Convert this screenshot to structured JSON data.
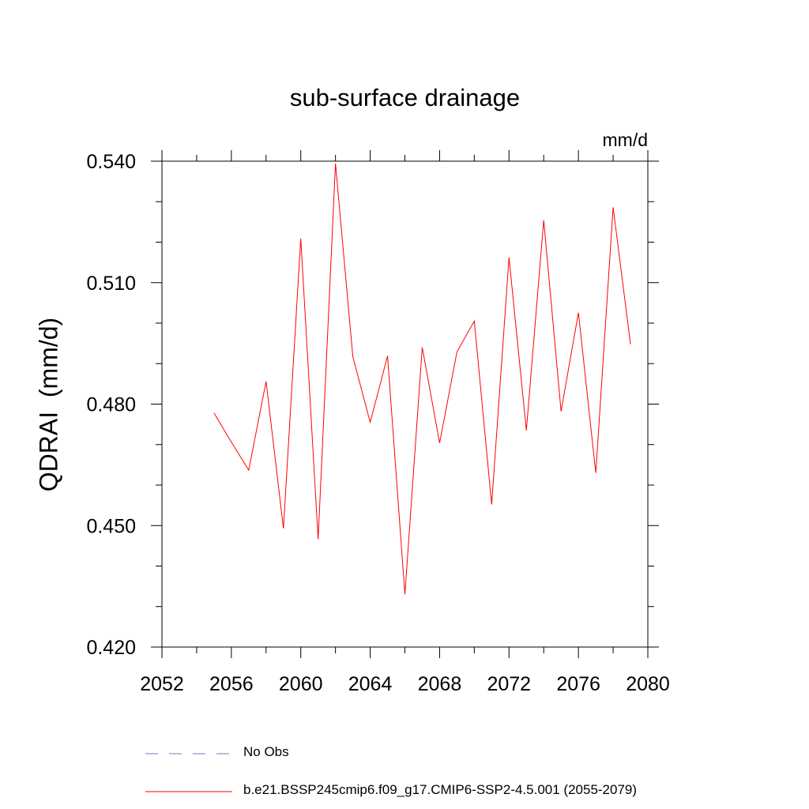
{
  "chart_data": {
    "type": "line",
    "title": "sub-surface drainage",
    "units": "mm/d",
    "ylabel": "QDRAI  (mm/d)",
    "xlabel": "",
    "xlim": [
      2052,
      2080
    ],
    "ylim": [
      0.42,
      0.54
    ],
    "x_major_ticks": [
      2052,
      2056,
      2060,
      2064,
      2068,
      2072,
      2076,
      2080
    ],
    "x_tick_labels": [
      "2052",
      "2056",
      "2060",
      "2064",
      "2068",
      "2072",
      "2076",
      "2080"
    ],
    "y_major_ticks": [
      0.42,
      0.45,
      0.48,
      0.51,
      0.54
    ],
    "y_tick_labels": [
      "0.420",
      "0.450",
      "0.480",
      "0.510",
      "0.540"
    ],
    "grid": false,
    "legend_position": "bottom",
    "series": [
      {
        "name": "b.e21.BSSP245cmip6.f09_g17.CMIP6-SSP2-4.5.001 (2055-2079)",
        "color": "#ff0000",
        "style": "solid",
        "x": [
          2055,
          2056,
          2057,
          2058,
          2059,
          2060,
          2061,
          2062,
          2063,
          2064,
          2065,
          2066,
          2067,
          2068,
          2069,
          2070,
          2071,
          2072,
          2073,
          2074,
          2075,
          2076,
          2077,
          2078,
          2079
        ],
        "y": [
          0.4778,
          0.4706,
          0.4637,
          0.4856,
          0.4493,
          0.5209,
          0.4466,
          0.5394,
          0.4917,
          0.4755,
          0.4919,
          0.433,
          0.494,
          0.4704,
          0.4929,
          0.5005,
          0.4552,
          0.5162,
          0.4735,
          0.5254,
          0.4782,
          0.5026,
          0.463,
          0.5286,
          0.4948
        ]
      },
      {
        "name": "No Obs",
        "color": "#7777cc",
        "style": "dashed",
        "x": [],
        "y": []
      }
    ]
  }
}
